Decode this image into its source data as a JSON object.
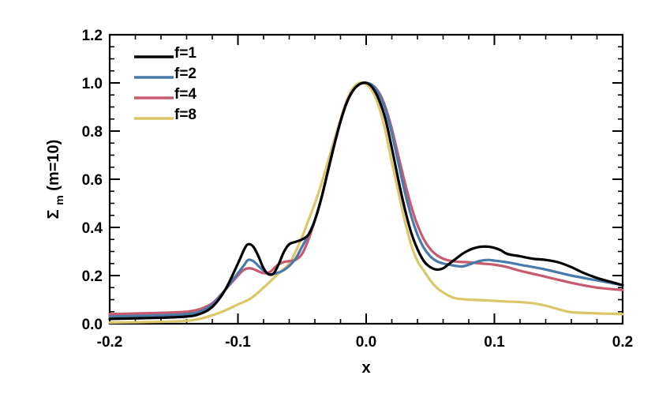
{
  "chart_data": {
    "type": "line",
    "title": "",
    "xlabel": "x",
    "ylabel": "Σm(m=10)",
    "ylabel_parts": {
      "symbol": "Σ",
      "subscript": "m",
      "suffix": "(m=10)"
    },
    "xlim": [
      -0.2,
      0.2
    ],
    "ylim": [
      0.0,
      1.2
    ],
    "x_ticks": [
      -0.2,
      -0.1,
      0.0,
      0.1,
      0.2
    ],
    "x_tick_labels": [
      "-0.2",
      "-0.1",
      "0.0",
      "0.1",
      "0.2"
    ],
    "y_ticks": [
      0.0,
      0.2,
      0.4,
      0.6,
      0.8,
      1.0,
      1.2
    ],
    "y_tick_labels": [
      "0.0",
      "0.2",
      "0.4",
      "0.6",
      "0.8",
      "1.0",
      "1.2"
    ],
    "x_minor_step": 0.02,
    "y_minor_step": 0.05,
    "grid": false,
    "legend_position": "top-left",
    "series": [
      {
        "name": "f=1",
        "color": "#000000",
        "points": [
          [
            -0.2,
            0.02
          ],
          [
            -0.16,
            0.025
          ],
          [
            -0.14,
            0.03
          ],
          [
            -0.13,
            0.04
          ],
          [
            -0.12,
            0.07
          ],
          [
            -0.11,
            0.14
          ],
          [
            -0.1,
            0.25
          ],
          [
            -0.095,
            0.31
          ],
          [
            -0.092,
            0.33
          ],
          [
            -0.088,
            0.32
          ],
          [
            -0.084,
            0.28
          ],
          [
            -0.08,
            0.23
          ],
          [
            -0.076,
            0.205
          ],
          [
            -0.072,
            0.21
          ],
          [
            -0.068,
            0.25
          ],
          [
            -0.064,
            0.3
          ],
          [
            -0.06,
            0.33
          ],
          [
            -0.055,
            0.34
          ],
          [
            -0.05,
            0.35
          ],
          [
            -0.045,
            0.37
          ],
          [
            -0.04,
            0.43
          ],
          [
            -0.035,
            0.52
          ],
          [
            -0.03,
            0.63
          ],
          [
            -0.025,
            0.74
          ],
          [
            -0.02,
            0.84
          ],
          [
            -0.015,
            0.92
          ],
          [
            -0.01,
            0.97
          ],
          [
            -0.005,
            0.995
          ],
          [
            0.0,
            1.0
          ],
          [
            0.005,
            0.98
          ],
          [
            0.01,
            0.93
          ],
          [
            0.015,
            0.85
          ],
          [
            0.02,
            0.73
          ],
          [
            0.025,
            0.6
          ],
          [
            0.03,
            0.48
          ],
          [
            0.035,
            0.38
          ],
          [
            0.04,
            0.31
          ],
          [
            0.045,
            0.26
          ],
          [
            0.05,
            0.235
          ],
          [
            0.055,
            0.225
          ],
          [
            0.06,
            0.23
          ],
          [
            0.065,
            0.25
          ],
          [
            0.07,
            0.27
          ],
          [
            0.075,
            0.29
          ],
          [
            0.08,
            0.305
          ],
          [
            0.085,
            0.315
          ],
          [
            0.09,
            0.32
          ],
          [
            0.095,
            0.32
          ],
          [
            0.1,
            0.315
          ],
          [
            0.105,
            0.305
          ],
          [
            0.11,
            0.29
          ],
          [
            0.12,
            0.28
          ],
          [
            0.13,
            0.27
          ],
          [
            0.14,
            0.265
          ],
          [
            0.15,
            0.255
          ],
          [
            0.16,
            0.235
          ],
          [
            0.17,
            0.21
          ],
          [
            0.18,
            0.19
          ],
          [
            0.19,
            0.175
          ],
          [
            0.2,
            0.16
          ]
        ]
      },
      {
        "name": "f=2",
        "color": "#4a7aaa",
        "points": [
          [
            -0.2,
            0.03
          ],
          [
            -0.16,
            0.035
          ],
          [
            -0.14,
            0.04
          ],
          [
            -0.13,
            0.05
          ],
          [
            -0.12,
            0.08
          ],
          [
            -0.11,
            0.14
          ],
          [
            -0.1,
            0.21
          ],
          [
            -0.095,
            0.245
          ],
          [
            -0.092,
            0.265
          ],
          [
            -0.088,
            0.26
          ],
          [
            -0.084,
            0.24
          ],
          [
            -0.08,
            0.22
          ],
          [
            -0.075,
            0.205
          ],
          [
            -0.07,
            0.21
          ],
          [
            -0.065,
            0.22
          ],
          [
            -0.06,
            0.24
          ],
          [
            -0.055,
            0.27
          ],
          [
            -0.05,
            0.32
          ],
          [
            -0.045,
            0.37
          ],
          [
            -0.04,
            0.43
          ],
          [
            -0.035,
            0.52
          ],
          [
            -0.03,
            0.63
          ],
          [
            -0.025,
            0.74
          ],
          [
            -0.02,
            0.84
          ],
          [
            -0.015,
            0.92
          ],
          [
            -0.01,
            0.97
          ],
          [
            -0.005,
            0.995
          ],
          [
            0.0,
            1.0
          ],
          [
            0.005,
            0.99
          ],
          [
            0.01,
            0.955
          ],
          [
            0.015,
            0.89
          ],
          [
            0.02,
            0.79
          ],
          [
            0.025,
            0.67
          ],
          [
            0.03,
            0.55
          ],
          [
            0.035,
            0.45
          ],
          [
            0.04,
            0.37
          ],
          [
            0.045,
            0.315
          ],
          [
            0.05,
            0.28
          ],
          [
            0.055,
            0.26
          ],
          [
            0.06,
            0.25
          ],
          [
            0.065,
            0.245
          ],
          [
            0.07,
            0.24
          ],
          [
            0.075,
            0.238
          ],
          [
            0.08,
            0.245
          ],
          [
            0.085,
            0.255
          ],
          [
            0.09,
            0.262
          ],
          [
            0.095,
            0.265
          ],
          [
            0.1,
            0.262
          ],
          [
            0.11,
            0.255
          ],
          [
            0.12,
            0.245
          ],
          [
            0.14,
            0.225
          ],
          [
            0.16,
            0.2
          ],
          [
            0.18,
            0.18
          ],
          [
            0.2,
            0.16
          ]
        ]
      },
      {
        "name": "f=4",
        "color": "#c85a6e",
        "points": [
          [
            -0.2,
            0.04
          ],
          [
            -0.16,
            0.045
          ],
          [
            -0.14,
            0.05
          ],
          [
            -0.13,
            0.06
          ],
          [
            -0.12,
            0.085
          ],
          [
            -0.11,
            0.14
          ],
          [
            -0.1,
            0.2
          ],
          [
            -0.095,
            0.225
          ],
          [
            -0.09,
            0.23
          ],
          [
            -0.085,
            0.22
          ],
          [
            -0.08,
            0.21
          ],
          [
            -0.075,
            0.215
          ],
          [
            -0.07,
            0.24
          ],
          [
            -0.065,
            0.255
          ],
          [
            -0.06,
            0.26
          ],
          [
            -0.055,
            0.265
          ],
          [
            -0.05,
            0.29
          ],
          [
            -0.045,
            0.35
          ],
          [
            -0.04,
            0.43
          ],
          [
            -0.035,
            0.52
          ],
          [
            -0.03,
            0.63
          ],
          [
            -0.025,
            0.74
          ],
          [
            -0.02,
            0.84
          ],
          [
            -0.015,
            0.92
          ],
          [
            -0.01,
            0.97
          ],
          [
            -0.005,
            0.995
          ],
          [
            0.0,
            1.0
          ],
          [
            0.005,
            0.99
          ],
          [
            0.01,
            0.96
          ],
          [
            0.015,
            0.9
          ],
          [
            0.02,
            0.81
          ],
          [
            0.025,
            0.7
          ],
          [
            0.03,
            0.59
          ],
          [
            0.035,
            0.49
          ],
          [
            0.04,
            0.41
          ],
          [
            0.045,
            0.35
          ],
          [
            0.05,
            0.31
          ],
          [
            0.055,
            0.285
          ],
          [
            0.06,
            0.27
          ],
          [
            0.065,
            0.262
          ],
          [
            0.07,
            0.258
          ],
          [
            0.08,
            0.255
          ],
          [
            0.09,
            0.25
          ],
          [
            0.1,
            0.245
          ],
          [
            0.11,
            0.235
          ],
          [
            0.12,
            0.22
          ],
          [
            0.14,
            0.195
          ],
          [
            0.16,
            0.17
          ],
          [
            0.18,
            0.15
          ],
          [
            0.2,
            0.14
          ]
        ]
      },
      {
        "name": "f=8",
        "color": "#ddc668",
        "points": [
          [
            -0.2,
            0.005
          ],
          [
            -0.16,
            0.008
          ],
          [
            -0.14,
            0.012
          ],
          [
            -0.13,
            0.02
          ],
          [
            -0.12,
            0.035
          ],
          [
            -0.11,
            0.055
          ],
          [
            -0.1,
            0.08
          ],
          [
            -0.09,
            0.105
          ],
          [
            -0.08,
            0.15
          ],
          [
            -0.07,
            0.2
          ],
          [
            -0.06,
            0.25
          ],
          [
            -0.055,
            0.3
          ],
          [
            -0.05,
            0.36
          ],
          [
            -0.045,
            0.43
          ],
          [
            -0.04,
            0.5
          ],
          [
            -0.035,
            0.58
          ],
          [
            -0.03,
            0.67
          ],
          [
            -0.025,
            0.76
          ],
          [
            -0.02,
            0.85
          ],
          [
            -0.015,
            0.93
          ],
          [
            -0.01,
            0.98
          ],
          [
            -0.005,
            1.0
          ],
          [
            0.0,
            0.995
          ],
          [
            0.005,
            0.965
          ],
          [
            0.01,
            0.9
          ],
          [
            0.015,
            0.8
          ],
          [
            0.02,
            0.67
          ],
          [
            0.025,
            0.55
          ],
          [
            0.03,
            0.43
          ],
          [
            0.035,
            0.33
          ],
          [
            0.04,
            0.26
          ],
          [
            0.045,
            0.22
          ],
          [
            0.05,
            0.18
          ],
          [
            0.055,
            0.15
          ],
          [
            0.06,
            0.13
          ],
          [
            0.065,
            0.115
          ],
          [
            0.07,
            0.105
          ],
          [
            0.08,
            0.1
          ],
          [
            0.09,
            0.098
          ],
          [
            0.1,
            0.095
          ],
          [
            0.11,
            0.092
          ],
          [
            0.12,
            0.09
          ],
          [
            0.13,
            0.085
          ],
          [
            0.14,
            0.075
          ],
          [
            0.15,
            0.06
          ],
          [
            0.16,
            0.048
          ],
          [
            0.18,
            0.043
          ],
          [
            0.2,
            0.04
          ]
        ]
      }
    ]
  }
}
